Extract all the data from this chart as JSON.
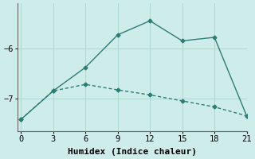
{
  "line1_x": [
    0,
    3,
    6,
    9,
    12,
    15,
    18,
    21
  ],
  "line1_y": [
    -7.42,
    -6.85,
    -6.38,
    -5.73,
    -5.45,
    -5.85,
    -5.78,
    -7.35
  ],
  "line2_x": [
    0,
    3,
    6,
    9,
    12,
    15,
    18,
    21
  ],
  "line2_y": [
    -7.42,
    -6.85,
    -6.72,
    -6.83,
    -6.93,
    -7.05,
    -7.17,
    -7.35
  ],
  "line_color": "#2e7d72",
  "background_color": "#ceecea",
  "xlabel": "Humidex (Indice chaleur)",
  "yticks": [
    -7,
    -6
  ],
  "xticks": [
    0,
    3,
    6,
    9,
    12,
    15,
    18,
    21
  ],
  "ylim": [
    -7.65,
    -5.1
  ],
  "xlim": [
    -0.3,
    21
  ],
  "grid_color": "#aed8d4",
  "markersize": 2.5,
  "linewidth": 1.0,
  "xlabel_fontsize": 8,
  "tick_fontsize": 7.5
}
